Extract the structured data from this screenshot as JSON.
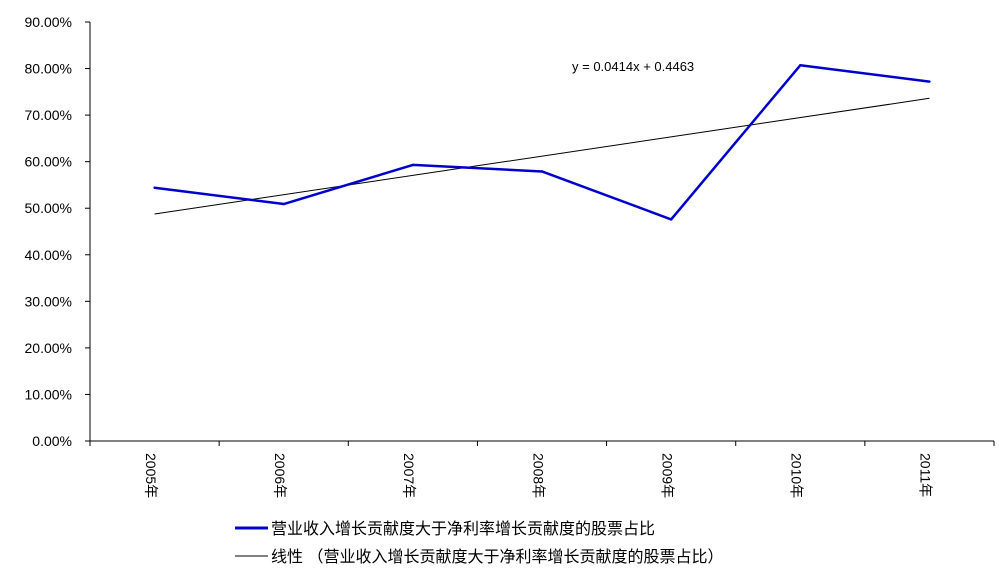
{
  "chart_data": {
    "type": "line",
    "categories": [
      "2005年",
      "2006年",
      "2007年",
      "2008年",
      "2009年",
      "2010年",
      "2011年"
    ],
    "series": [
      {
        "name": "营业收入增长贡献度大于净利率增长贡献度的股票占比",
        "values": [
          0.544,
          0.509,
          0.593,
          0.579,
          0.476,
          0.807,
          0.772
        ],
        "color": "#0000CC"
      }
    ],
    "trendline": {
      "name": "线性 （营业收入增长贡献度大于净利率增长贡献度的股票占比）",
      "equation": "y = 0.0414x + 0.4463",
      "slope": 0.0414,
      "intercept": 0.4463,
      "color": "#000000"
    },
    "yaxis": {
      "min": 0,
      "max": 0.9,
      "ticks": [
        "0.00%",
        "10.00%",
        "20.00%",
        "30.00%",
        "40.00%",
        "50.00%",
        "60.00%",
        "70.00%",
        "80.00%",
        "90.00%"
      ]
    },
    "grid": false,
    "legend": "bottom"
  }
}
